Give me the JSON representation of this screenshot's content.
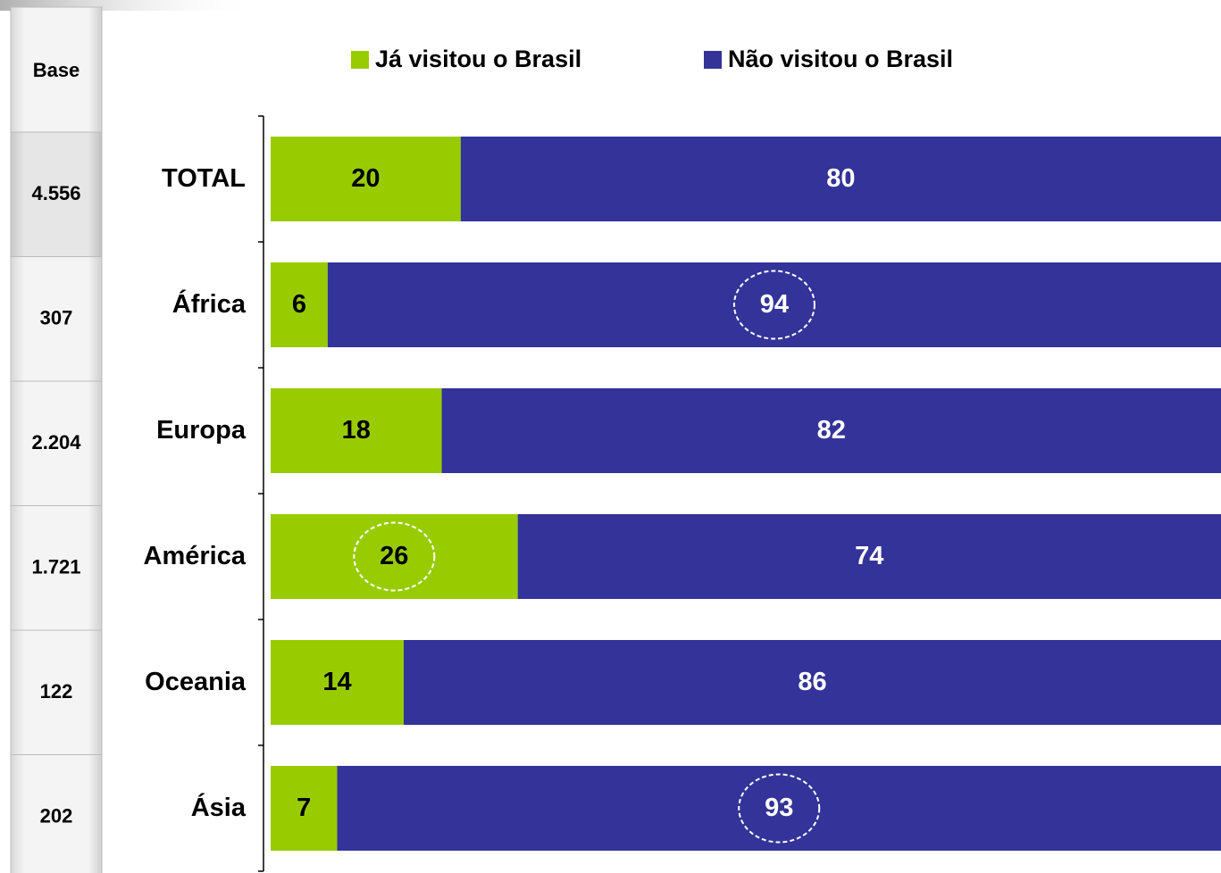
{
  "chart_data": {
    "type": "stacked-barh",
    "categories": [
      "TOTAL",
      "África",
      "Europa",
      "América",
      "Oceania",
      "Ásia"
    ],
    "series": [
      {
        "name": "Já visitou o Brasil",
        "color": "#99cc00",
        "label_color": "#000000",
        "values": [
          20,
          6,
          18,
          26,
          14,
          7
        ]
      },
      {
        "name": "Não visitou o Brasil",
        "color": "#333399",
        "label_color": "#ffffff",
        "values": [
          80,
          94,
          82,
          74,
          86,
          93
        ]
      }
    ],
    "xlim": [
      0,
      100
    ],
    "legend": "top",
    "highlight": [
      {
        "series": 1,
        "index": 1
      },
      {
        "series": 0,
        "index": 3
      },
      {
        "series": 1,
        "index": 5
      }
    ],
    "base": {
      "label": "Base",
      "values": [
        "4.556",
        "307",
        "2.204",
        "1.721",
        "122",
        "202"
      ]
    }
  }
}
